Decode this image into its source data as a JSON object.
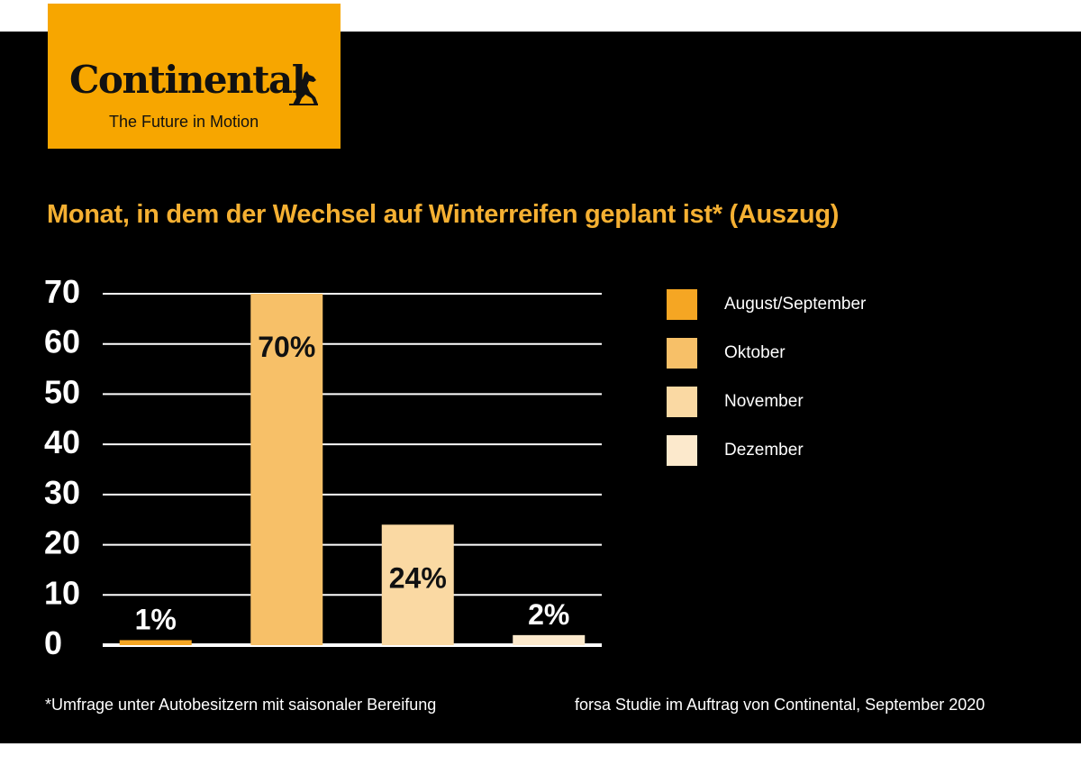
{
  "logo": {
    "brand": "Continental",
    "tagline": "The Future in Motion",
    "color": "#f7a600"
  },
  "chart_data": {
    "type": "bar",
    "title": "Monat, in dem der Wechsel auf Winterreifen geplant ist* (Auszug)",
    "categories": [
      "August/September",
      "Oktober",
      "November",
      "Dezember"
    ],
    "values": [
      1,
      70,
      24,
      2
    ],
    "data_labels": [
      "1%",
      "70%",
      "24%",
      "2%"
    ],
    "colors": [
      "#f5a623",
      "#f7c068",
      "#fad9a3",
      "#fce9cc"
    ],
    "yticks": [
      "0",
      "10",
      "20",
      "30",
      "40",
      "50",
      "60",
      "70"
    ],
    "ylim": [
      0,
      70
    ],
    "grid": true,
    "legend_position": "right",
    "xlabel": "",
    "ylabel": ""
  },
  "footnotes": {
    "left": "*Umfrage unter Autobesitzern mit saisonaler Bereifung",
    "right": "forsa Studie im Auftrag von Continental, September 2020"
  }
}
